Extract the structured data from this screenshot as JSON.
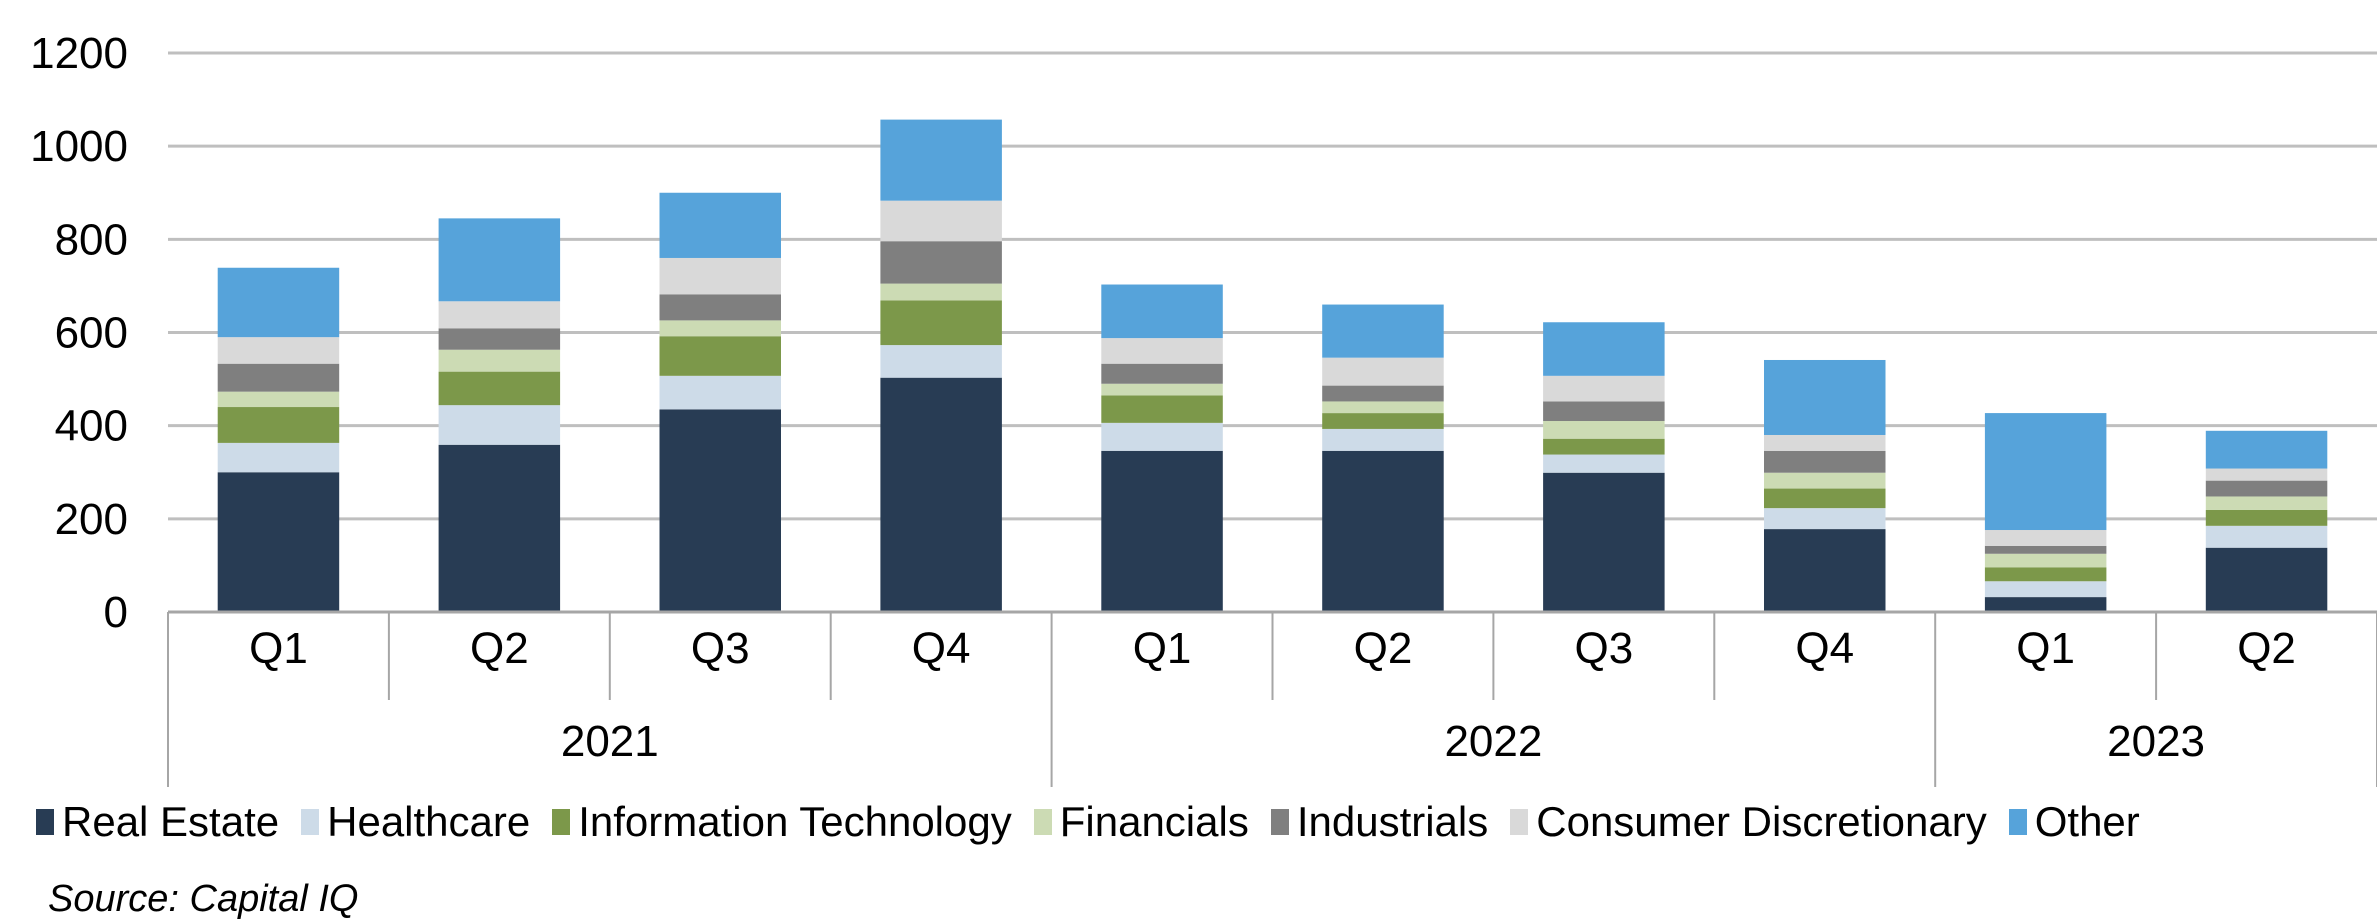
{
  "chart_data": {
    "type": "bar",
    "stacked": true,
    "title": "",
    "xlabel": "",
    "ylabel": "",
    "ylim": [
      0,
      1200
    ],
    "yticks": [
      0,
      200,
      400,
      600,
      800,
      1000,
      1200
    ],
    "grid": true,
    "legend_position": "bottom",
    "categories": [
      "Q1",
      "Q2",
      "Q3",
      "Q4",
      "Q1",
      "Q2",
      "Q3",
      "Q4",
      "Q1",
      "Q2"
    ],
    "groups": [
      {
        "label": "2021",
        "count": 4
      },
      {
        "label": "2022",
        "count": 4
      },
      {
        "label": "2023",
        "count": 2
      }
    ],
    "series": [
      {
        "name": "Real Estate",
        "color": "#283C54",
        "values": [
          300,
          359,
          435,
          503,
          346,
          346,
          299,
          178,
          32,
          138
        ]
      },
      {
        "name": "Healthcare",
        "color": "#CDDBE8",
        "values": [
          63,
          85,
          72,
          70,
          60,
          47,
          39,
          45,
          34,
          47
        ]
      },
      {
        "name": "Information Technology",
        "color": "#7C984A",
        "values": [
          77,
          72,
          85,
          96,
          59,
          34,
          34,
          42,
          30,
          34
        ]
      },
      {
        "name": "Financials",
        "color": "#CCDBB4",
        "values": [
          33,
          47,
          34,
          36,
          25,
          25,
          38,
          34,
          29,
          29
        ]
      },
      {
        "name": "Industrials",
        "color": "#7F7F7F",
        "values": [
          60,
          46,
          56,
          91,
          43,
          34,
          42,
          47,
          17,
          34
        ]
      },
      {
        "name": "Consumer Discretionary",
        "color": "#D9D9D9",
        "values": [
          57,
          58,
          78,
          87,
          55,
          60,
          55,
          34,
          34,
          26
        ]
      },
      {
        "name": "Other",
        "color": "#56A3DA",
        "values": [
          149,
          178,
          140,
          174,
          115,
          114,
          115,
          161,
          251,
          81
        ]
      }
    ],
    "source": "Source: Capital IQ"
  }
}
